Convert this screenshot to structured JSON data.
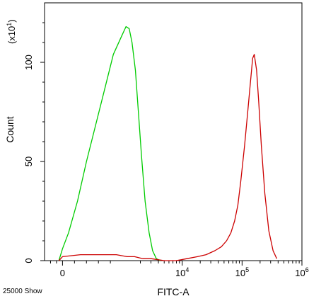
{
  "chart_data": {
    "type": "line",
    "title": "",
    "xlabel": "FITC-A",
    "ylabel": "Count",
    "y_multiplier_label": "(x10",
    "y_multiplier_exp": "1",
    "y_multiplier_close": ")",
    "footer_left": "25000 Show",
    "x_scale": "biexponential",
    "xlim": [
      -300,
      1000000
    ],
    "ylim": [
      0,
      130
    ],
    "y_ticks": [
      {
        "value": 0,
        "label": "0"
      },
      {
        "value": 50,
        "label": "50"
      },
      {
        "value": 100,
        "label": "100"
      }
    ],
    "x_ticks": [
      {
        "value": 0,
        "label": "0",
        "exp": ""
      },
      {
        "value": 10000,
        "label": "10",
        "exp": "4"
      },
      {
        "value": 100000,
        "label": "10",
        "exp": "5"
      },
      {
        "value": 1000000,
        "label": "10",
        "exp": "6"
      }
    ],
    "grid": false,
    "legend": "none",
    "series": [
      {
        "color": "#00cc00",
        "x": [
          -60,
          0,
          100,
          250,
          400,
          550,
          700,
          850,
          1000,
          1150,
          1300,
          1450,
          1650,
          1850,
          2100,
          2400,
          2800,
          3200,
          3700,
          4300
        ],
        "y": [
          0,
          6,
          14,
          30,
          50,
          68,
          86,
          104,
          114,
          118,
          117,
          110,
          96,
          75,
          52,
          30,
          14,
          5,
          1,
          0
        ]
      },
      {
        "color": "#cc0000",
        "x": [
          -60,
          0,
          300,
          600,
          900,
          1200,
          1600,
          2200,
          3000,
          5000,
          8000,
          12000,
          18000,
          25000,
          35000,
          45000,
          55000,
          65000,
          75000,
          85000,
          95000,
          110000,
          125000,
          140000,
          150000,
          160000,
          175000,
          190000,
          210000,
          240000,
          280000,
          330000,
          380000
        ],
        "y": [
          0,
          2,
          3,
          3,
          3,
          2,
          2,
          1,
          1,
          0,
          0,
          1,
          2,
          3,
          5,
          7,
          10,
          14,
          20,
          28,
          40,
          58,
          76,
          92,
          102,
          104,
          96,
          80,
          58,
          34,
          15,
          5,
          1
        ]
      }
    ]
  }
}
